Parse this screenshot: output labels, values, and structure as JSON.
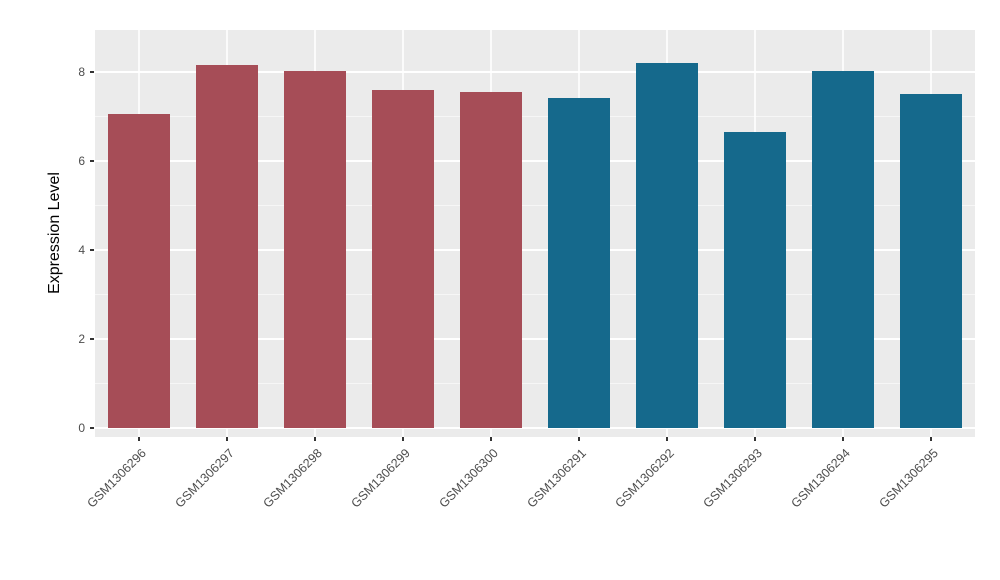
{
  "chart_data": {
    "type": "bar",
    "title": "",
    "xlabel": "",
    "ylabel": "Expression Level",
    "ylim": [
      0,
      8.6
    ],
    "yticks": [
      0,
      2,
      4,
      6,
      8
    ],
    "yticks_minor": [
      1,
      3,
      5,
      7
    ],
    "grid": "white major and minor horizontal lines on gray panel, vertical major at category centers",
    "legend_position": "none",
    "panel_background": "#EBEBEB",
    "categories": [
      "GSM1306296",
      "GSM1306297",
      "GSM1306298",
      "GSM1306299",
      "GSM1306300",
      "GSM1306291",
      "GSM1306292",
      "GSM1306293",
      "GSM1306294",
      "GSM1306295"
    ],
    "values": [
      7.05,
      8.15,
      8.02,
      7.6,
      7.55,
      7.42,
      8.2,
      6.65,
      8.02,
      7.5
    ],
    "groups": [
      "group1",
      "group1",
      "group1",
      "group1",
      "group1",
      "group2",
      "group2",
      "group2",
      "group2",
      "group2"
    ],
    "group_colors": {
      "group1": "#A64D57",
      "group2": "#15698C"
    }
  }
}
